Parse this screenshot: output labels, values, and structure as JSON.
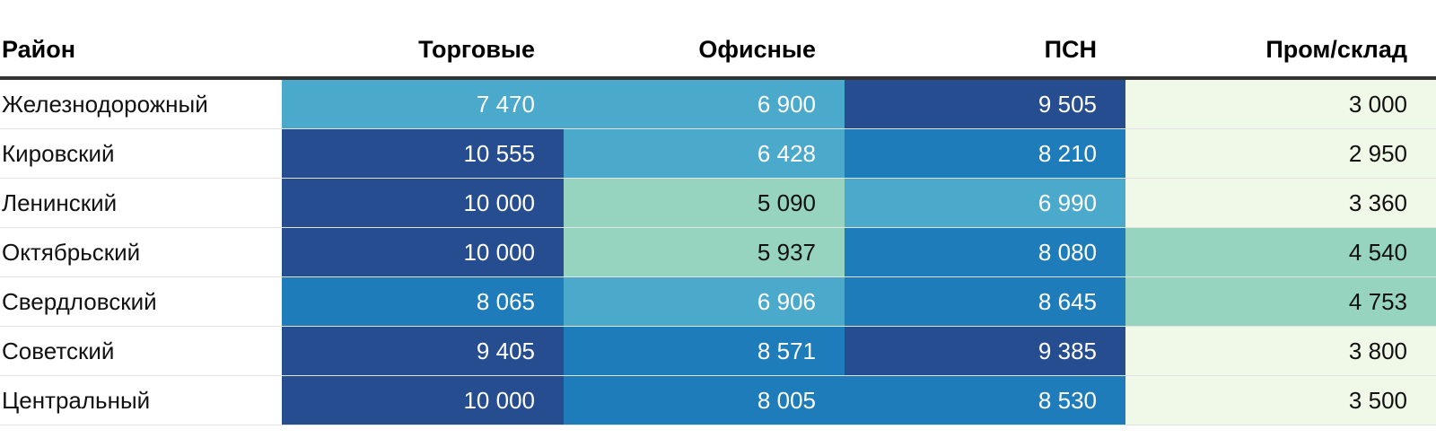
{
  "chart_data": {
    "type": "table",
    "columns": [
      "Район",
      "Торговые",
      "Офисные",
      "ПСН",
      "Пром/склад"
    ],
    "rows": [
      {
        "district": "Железнодорожный",
        "values": [
          7470,
          6900,
          9505,
          3000
        ],
        "labels": [
          "7 470",
          "6 900",
          "9 505",
          "3 000"
        ]
      },
      {
        "district": "Кировский",
        "values": [
          10555,
          6428,
          8210,
          2950
        ],
        "labels": [
          "10 555",
          "6 428",
          "8 210",
          "2 950"
        ]
      },
      {
        "district": "Ленинский",
        "values": [
          10000,
          5090,
          6990,
          3360
        ],
        "labels": [
          "10 000",
          "5 090",
          "6 990",
          "3 360"
        ]
      },
      {
        "district": "Октябрьский",
        "values": [
          10000,
          5937,
          8080,
          4540
        ],
        "labels": [
          "10 000",
          "5 937",
          "8 080",
          "4 540"
        ]
      },
      {
        "district": "Свердловский",
        "values": [
          8065,
          6906,
          8645,
          4753
        ],
        "labels": [
          "8 065",
          "6 906",
          "8 645",
          "4 753"
        ]
      },
      {
        "district": "Советский",
        "values": [
          9405,
          8571,
          9385,
          3800
        ],
        "labels": [
          "9 405",
          "8 571",
          "9 385",
          "3 800"
        ]
      },
      {
        "district": "Центральный",
        "values": [
          10000,
          8005,
          8530,
          3500
        ],
        "labels": [
          "10 000",
          "8 005",
          "8 530",
          "3 500"
        ]
      }
    ],
    "color_scale": [
      {
        "min": 0,
        "bg": "#f0f9e8",
        "text": "#111111"
      },
      {
        "min": 4500,
        "bg": "#96d4c0",
        "text": "#111111"
      },
      {
        "min": 6000,
        "bg": "#4ba9cc",
        "text": "#ffffff"
      },
      {
        "min": 8000,
        "bg": "#1e7cba",
        "text": "#ffffff"
      },
      {
        "min": 9300,
        "bg": "#254d8f",
        "text": "#ffffff"
      }
    ]
  }
}
